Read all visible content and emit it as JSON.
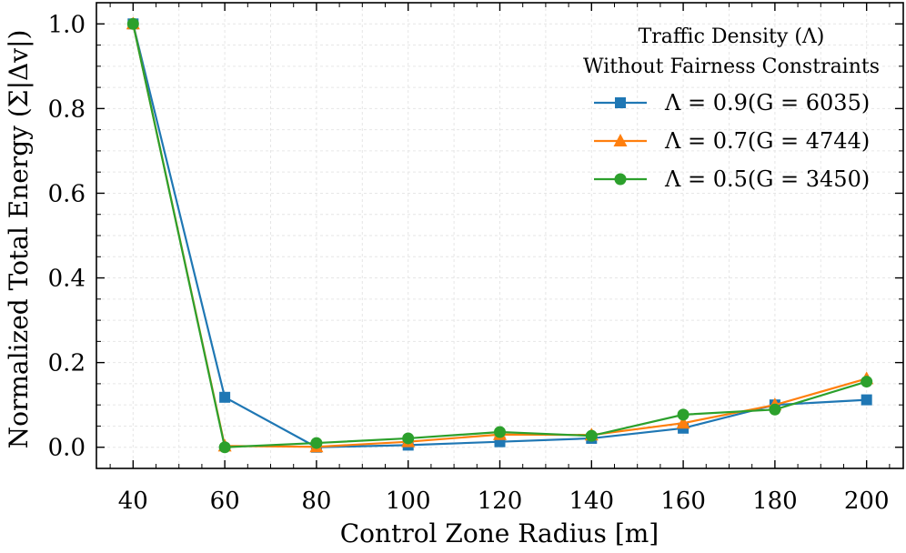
{
  "chart_data": {
    "type": "line",
    "title": "",
    "xlabel": "Control Zone Radius [m]",
    "ylabel": "Normalized Total Energy (Σ|Δv|)",
    "x": [
      40,
      60,
      80,
      100,
      120,
      140,
      160,
      180,
      200
    ],
    "xlim": [
      32,
      208
    ],
    "ylim": [
      -0.05,
      1.05
    ],
    "xticks": [
      40,
      60,
      80,
      100,
      120,
      140,
      160,
      180,
      200
    ],
    "yticks": [
      0.0,
      0.2,
      0.4,
      0.6,
      0.8,
      1.0
    ],
    "ytick_labels": [
      "0.0",
      "0.2",
      "0.4",
      "0.6",
      "0.8",
      "1.0"
    ],
    "grid": true,
    "legend": {
      "placement": "top-right",
      "title_line1": "Traffic Density (Λ)",
      "title_line2": "Without Fairness Constraints"
    },
    "series": [
      {
        "name": "Λ = 0.9(G = 6035)",
        "color": "#1f77b4",
        "marker": "square",
        "values": [
          1.0,
          0.118,
          0.0,
          0.005,
          0.013,
          0.021,
          0.045,
          0.1,
          0.112
        ]
      },
      {
        "name": "Λ = 0.7(G = 4744)",
        "color": "#ff7f0e",
        "marker": "triangle",
        "values": [
          1.0,
          0.003,
          0.001,
          0.013,
          0.03,
          0.029,
          0.057,
          0.1,
          0.162
        ]
      },
      {
        "name": "Λ = 0.5(G = 3450)",
        "color": "#2ca02c",
        "marker": "circle",
        "values": [
          1.0,
          0.0,
          0.01,
          0.021,
          0.036,
          0.027,
          0.077,
          0.089,
          0.155
        ]
      }
    ]
  }
}
